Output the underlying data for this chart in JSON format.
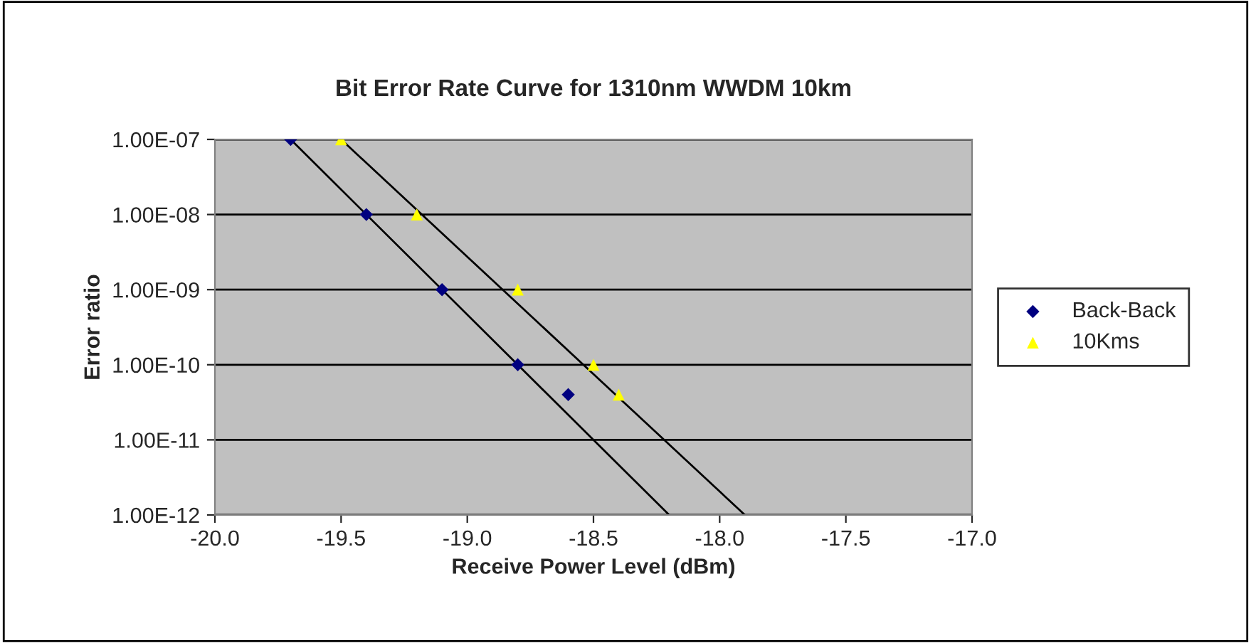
{
  "chart_data": {
    "type": "scatter",
    "title": "Bit Error Rate Curve for 1310nm WWDM 10km",
    "xlabel": "Receive Power Level (dBm)",
    "ylabel": "Error ratio",
    "log": "y",
    "grid": "y",
    "legend": "right",
    "xlim": [
      -20,
      -17
    ],
    "xticks": [
      {
        "value": -20,
        "label": "-20.0"
      },
      {
        "value": -19.5,
        "label": "-19.5"
      },
      {
        "value": -19,
        "label": "-19.0"
      },
      {
        "value": -18.5,
        "label": "-18.5"
      },
      {
        "value": -18,
        "label": "-18.0"
      },
      {
        "value": -17.5,
        "label": "-17.5"
      },
      {
        "value": -17,
        "label": "-17.0"
      }
    ],
    "ylim": [
      1e-12,
      1e-07
    ],
    "yticks": [
      {
        "value": 1e-12,
        "label": "1.00E-12"
      },
      {
        "value": 1e-11,
        "label": "1.00E-11"
      },
      {
        "value": 1e-10,
        "label": "1.00E-10"
      },
      {
        "value": 1e-09,
        "label": "1.00E-09"
      },
      {
        "value": 1e-08,
        "label": "1.00E-08"
      },
      {
        "value": 1e-07,
        "label": "1.00E-07"
      }
    ],
    "series": [
      {
        "name": "Back-Back",
        "marker": "diamond",
        "color": "#000080",
        "x": [
          -19.7,
          -19.4,
          -19.1,
          -18.8,
          -18.6
        ],
        "values": [
          1e-07,
          1e-08,
          1e-09,
          1e-10,
          4e-11
        ]
      },
      {
        "name": "10Kms",
        "marker": "triangle",
        "color": "#ffff00",
        "x": [
          -19.5,
          -19.2,
          -18.8,
          -18.5,
          -18.4
        ],
        "values": [
          1e-07,
          1e-08,
          1e-09,
          1e-10,
          4e-11
        ]
      },
      {
        "type": "line",
        "color": "#000000",
        "x": [
          -19.7,
          -18.2
        ],
        "values": [
          1e-07,
          1e-12
        ]
      },
      {
        "type": "line",
        "color": "#000000",
        "x": [
          -19.5,
          -17.9
        ],
        "values": [
          1e-07,
          1e-12
        ]
      }
    ]
  }
}
